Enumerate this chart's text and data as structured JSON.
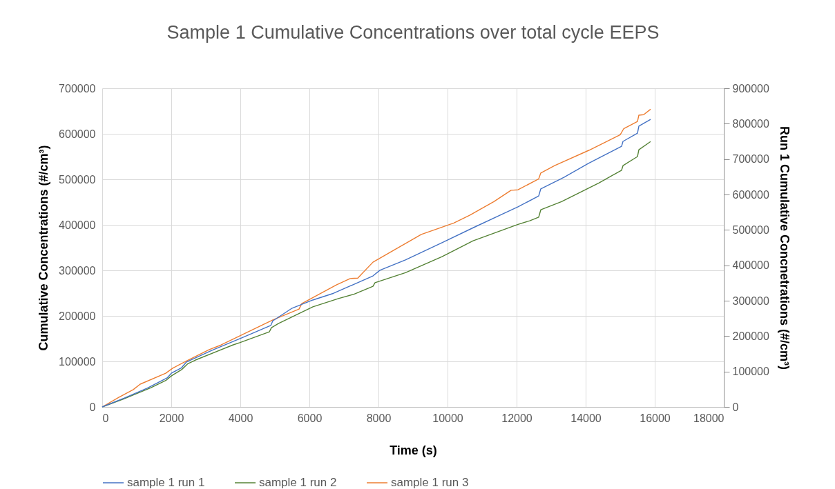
{
  "chart_data": {
    "type": "line",
    "title": "Sample 1 Cumulative Concentrations over total cycle EEPS",
    "xlabel": "Time (s)",
    "ylabel": "Cumulative Concentrations (#/cm³)",
    "y2label": "Run 1 Cumulative Concnetrations (#/cm³)",
    "xlim": [
      0,
      18000
    ],
    "xticks": [
      0,
      2000,
      4000,
      6000,
      8000,
      10000,
      12000,
      14000,
      16000,
      18000
    ],
    "ylim": [
      0,
      700000
    ],
    "yticks": [
      0,
      100000,
      200000,
      300000,
      400000,
      500000,
      600000,
      700000
    ],
    "y2lim": [
      0,
      900000
    ],
    "y2ticks": [
      0,
      100000,
      200000,
      300000,
      400000,
      500000,
      600000,
      700000,
      800000,
      900000
    ],
    "grid": true,
    "legend": "bottom",
    "series": [
      {
        "name": "sample 1 run 1",
        "color": "#4472c4",
        "axis": "y2",
        "x": [
          0,
          640,
          1300,
          1880,
          2000,
          2300,
          2440,
          3180,
          4040,
          4880,
          4940,
          5500,
          6100,
          6700,
          7840,
          8040,
          8780,
          9840,
          10740,
          11600,
          12040,
          12640,
          12700,
          13380,
          14080,
          15040,
          15080,
          15500,
          15540,
          15880
        ],
        "values": [
          0,
          25000,
          53000,
          82000,
          95000,
          111000,
          127000,
          160000,
          195000,
          230000,
          243000,
          279000,
          302000,
          321000,
          370000,
          386000,
          415000,
          464000,
          506000,
          545000,
          565000,
          596000,
          616000,
          649000,
          688000,
          736000,
          750000,
          773000,
          793000,
          812000
        ]
      },
      {
        "name": "sample 1 run 2",
        "color": "#548235",
        "x": [
          0,
          600,
          1400,
          1840,
          2000,
          2300,
          2480,
          2700,
          3780,
          3980,
          4840,
          4900,
          5100,
          6100,
          6840,
          7300,
          7840,
          7900,
          8780,
          9840,
          10740,
          12040,
          12380,
          12640,
          12700,
          13300,
          14380,
          15040,
          15080,
          15500,
          15540,
          15880
        ],
        "values": [
          0,
          17000,
          42000,
          58000,
          68000,
          82000,
          95000,
          103000,
          136000,
          141000,
          165000,
          174000,
          183000,
          220000,
          238000,
          248000,
          265000,
          273000,
          295000,
          330000,
          365000,
          401000,
          409000,
          417000,
          433000,
          451000,
          492000,
          520000,
          530000,
          550000,
          565000,
          583000
        ]
      },
      {
        "name": "sample 1 run 3",
        "color": "#ed7d31",
        "x": [
          0,
          480,
          900,
          1100,
          1840,
          2040,
          2440,
          3100,
          3440,
          4640,
          4940,
          5700,
          5780,
          6780,
          7180,
          7400,
          7840,
          9240,
          9840,
          10180,
          10640,
          11340,
          11840,
          12040,
          12640,
          12700,
          13100,
          14100,
          15000,
          15100,
          15500,
          15540,
          15680,
          15880
        ],
        "values": [
          0,
          21000,
          38000,
          50000,
          74000,
          85000,
          101000,
          126000,
          136000,
          180000,
          191000,
          215000,
          227000,
          268000,
          282000,
          283000,
          318000,
          379000,
          395000,
          404000,
          421000,
          451000,
          476000,
          477000,
          501000,
          514000,
          530000,
          564000,
          598000,
          611000,
          627000,
          641000,
          642000,
          654000
        ]
      }
    ]
  }
}
